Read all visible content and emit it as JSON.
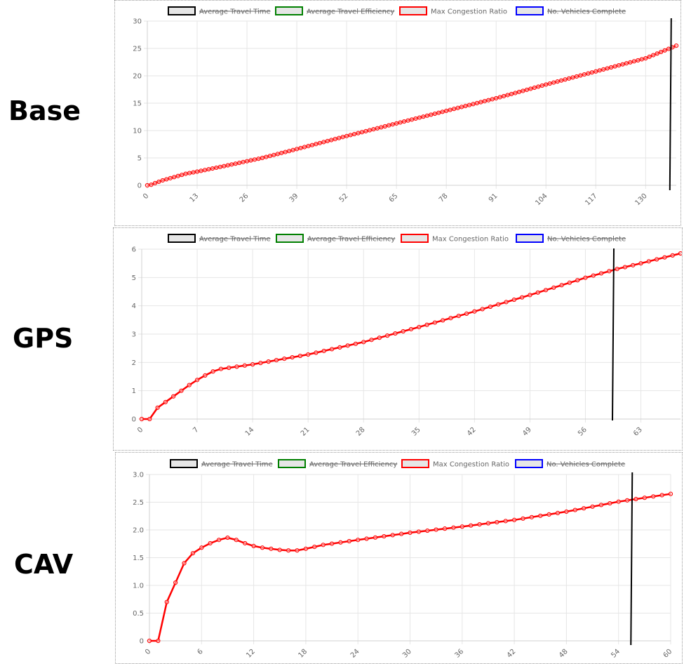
{
  "panel_labels": [
    "Base",
    "GPS",
    "CAV"
  ],
  "legend": [
    {
      "label": "Average Travel Time",
      "color": "#000000",
      "fill": "#e6e6e6",
      "hidden": true
    },
    {
      "label": "Average Travel Efficiency",
      "color": "#008000",
      "fill": "#e6e6e6",
      "hidden": true
    },
    {
      "label": "Max Congestion Ratio",
      "color": "#ff0000",
      "fill": "#e6e6e6",
      "hidden": false
    },
    {
      "label": "No. Vehicles Complete",
      "color": "#0000ff",
      "fill": "#e6e6e6",
      "hidden": true
    }
  ],
  "chart_data": [
    {
      "type": "line",
      "series_color": "#ff0000",
      "grid": true,
      "legend_position": "top",
      "xlim": [
        0,
        138
      ],
      "xticks": [
        0,
        13,
        26,
        39,
        52,
        65,
        78,
        91,
        104,
        117,
        130
      ],
      "ylim": [
        0,
        30
      ],
      "yticks": [
        0,
        5,
        10,
        15,
        20,
        25,
        30
      ],
      "ytick_labels": [
        "0",
        "5",
        "10",
        "15",
        "20",
        "25",
        "30"
      ],
      "marker_x": 136.5,
      "anchors": [
        [
          0,
          0
        ],
        [
          1,
          0.1
        ],
        [
          2,
          0.4
        ],
        [
          4,
          0.9
        ],
        [
          6,
          1.3
        ],
        [
          8,
          1.7
        ],
        [
          10,
          2.1
        ],
        [
          13,
          2.5
        ],
        [
          20,
          3.5
        ],
        [
          30,
          5.0
        ],
        [
          40,
          6.8
        ],
        [
          52,
          9.0
        ],
        [
          65,
          11.3
        ],
        [
          78,
          13.6
        ],
        [
          91,
          15.9
        ],
        [
          104,
          18.4
        ],
        [
          117,
          20.8
        ],
        [
          130,
          23.2
        ],
        [
          138,
          25.5
        ]
      ]
    },
    {
      "type": "line",
      "series_color": "#ff0000",
      "grid": true,
      "legend_position": "top",
      "xlim": [
        0,
        68
      ],
      "xticks": [
        0,
        7,
        14,
        21,
        28,
        35,
        42,
        49,
        56,
        63
      ],
      "ylim": [
        0,
        6
      ],
      "yticks": [
        0,
        1,
        2,
        3,
        4,
        5,
        6
      ],
      "ytick_labels": [
        "0",
        "1",
        "2",
        "3",
        "4",
        "5",
        "6"
      ],
      "marker_x": 59.5,
      "anchors": [
        [
          0,
          0
        ],
        [
          1,
          0
        ],
        [
          2,
          0.4
        ],
        [
          3,
          0.6
        ],
        [
          4,
          0.8
        ],
        [
          5,
          1.0
        ],
        [
          6,
          1.2
        ],
        [
          7,
          1.38
        ],
        [
          8,
          1.54
        ],
        [
          9,
          1.68
        ],
        [
          10,
          1.77
        ],
        [
          11,
          1.81
        ],
        [
          12,
          1.85
        ],
        [
          14,
          1.93
        ],
        [
          18,
          2.13
        ],
        [
          21,
          2.28
        ],
        [
          28,
          2.72
        ],
        [
          35,
          3.25
        ],
        [
          42,
          3.8
        ],
        [
          49,
          4.38
        ],
        [
          56,
          4.99
        ],
        [
          60,
          5.3
        ],
        [
          63,
          5.5
        ],
        [
          68,
          5.85
        ]
      ]
    },
    {
      "type": "line",
      "series_color": "#ff0000",
      "grid": true,
      "legend_position": "top",
      "xlim": [
        0,
        60
      ],
      "xticks": [
        0,
        6,
        12,
        18,
        24,
        30,
        36,
        42,
        48,
        54,
        60
      ],
      "ylim": [
        0,
        3.0
      ],
      "yticks": [
        0,
        0.5,
        1.0,
        1.5,
        2.0,
        2.5,
        3.0
      ],
      "ytick_labels": [
        "0",
        "0.5",
        "1.0",
        "1.5",
        "2.0",
        "2.5",
        "3.0"
      ],
      "marker_x": 55.5,
      "anchors": [
        [
          0,
          0
        ],
        [
          1,
          0
        ],
        [
          2,
          0.7
        ],
        [
          3,
          1.05
        ],
        [
          4,
          1.4
        ],
        [
          5,
          1.58
        ],
        [
          6,
          1.68
        ],
        [
          7,
          1.76
        ],
        [
          8,
          1.82
        ],
        [
          9,
          1.86
        ],
        [
          10,
          1.82
        ],
        [
          11,
          1.76
        ],
        [
          12,
          1.71
        ],
        [
          13,
          1.68
        ],
        [
          14,
          1.66
        ],
        [
          15,
          1.64
        ],
        [
          16,
          1.63
        ],
        [
          17,
          1.63
        ],
        [
          18,
          1.66
        ],
        [
          20,
          1.73
        ],
        [
          24,
          1.82
        ],
        [
          30,
          1.95
        ],
        [
          36,
          2.06
        ],
        [
          42,
          2.18
        ],
        [
          48,
          2.33
        ],
        [
          54,
          2.51
        ],
        [
          57,
          2.58
        ],
        [
          60,
          2.65
        ]
      ]
    }
  ]
}
